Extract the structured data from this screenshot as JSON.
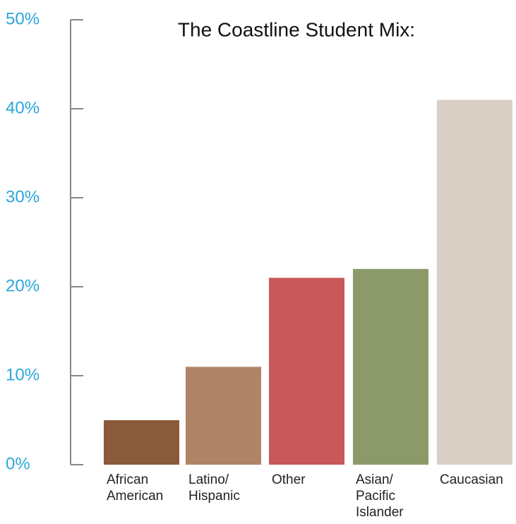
{
  "chart_data": {
    "type": "bar",
    "title": "The Coastline Student Mix:",
    "categories": [
      "African American",
      "Latino/ Hispanic",
      "Other",
      "Asian/ Pacific Islander",
      "Caucasian"
    ],
    "values": [
      5,
      11,
      21,
      22,
      41
    ],
    "colors": [
      "#8a5a3c",
      "#b08466",
      "#c8585a",
      "#8c9a6a",
      "#d9cfc4"
    ],
    "ylim": [
      0,
      50
    ],
    "yticks": [
      {
        "value": 0,
        "label": "0%"
      },
      {
        "value": 10,
        "label": "10%"
      },
      {
        "value": 20,
        "label": "20%"
      },
      {
        "value": 30,
        "label": "30%"
      },
      {
        "value": 40,
        "label": "40%"
      },
      {
        "value": 50,
        "label": "50%"
      }
    ]
  }
}
